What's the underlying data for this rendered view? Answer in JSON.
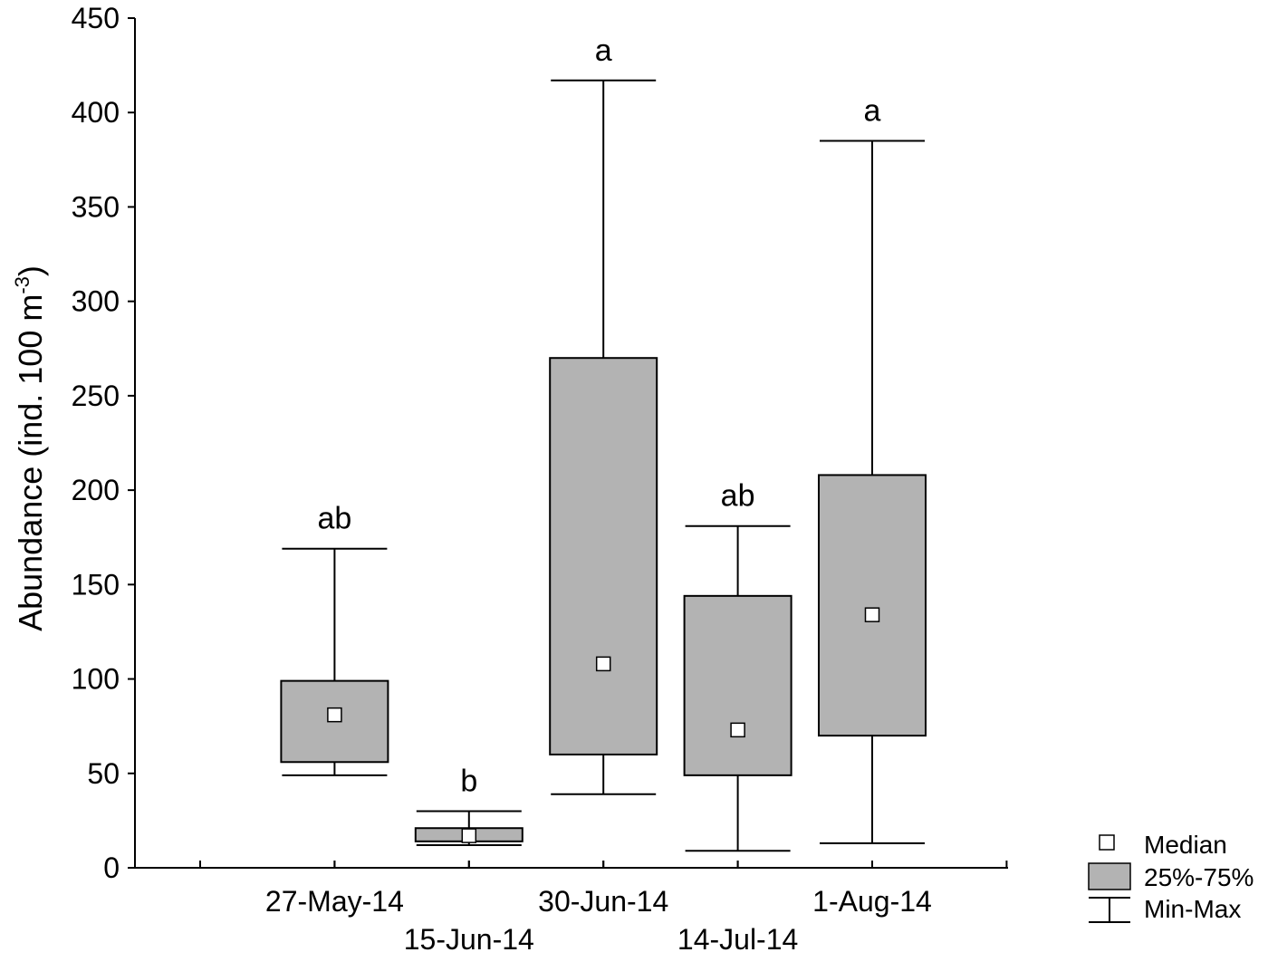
{
  "chart_data": {
    "type": "box",
    "title": "",
    "ylabel": {
      "main": "Abundance (ind. 100 m",
      "sup": "-3",
      "close": ")"
    },
    "xlabel": "",
    "ylim": [
      0,
      450
    ],
    "yticks": [
      0,
      50,
      100,
      150,
      200,
      250,
      300,
      350,
      400,
      450
    ],
    "categories": [
      "27-May-14",
      "15-Jun-14",
      "30-Jun-14",
      "14-Jul-14",
      "1-Aug-14"
    ],
    "boxes": [
      {
        "category": "27-May-14",
        "min": 49,
        "q1": 56,
        "median": 81,
        "q3": 99,
        "max": 169,
        "group": "ab"
      },
      {
        "category": "15-Jun-14",
        "min": 12,
        "q1": 14,
        "median": 17,
        "q3": 21,
        "max": 30,
        "group": "b"
      },
      {
        "category": "30-Jun-14",
        "min": 39,
        "q1": 60,
        "median": 108,
        "q3": 270,
        "max": 417,
        "group": "a"
      },
      {
        "category": "14-Jul-14",
        "min": 9,
        "q1": 49,
        "median": 73,
        "q3": 144,
        "max": 181,
        "group": "ab"
      },
      {
        "category": "1-Aug-14",
        "min": 13,
        "q1": 70,
        "median": 134,
        "q3": 208,
        "max": 385,
        "group": "a"
      }
    ],
    "legend": {
      "position": "bottom-right",
      "items": [
        "Median",
        "25%-75%",
        "Min-Max"
      ]
    },
    "grid": false,
    "colors": {
      "box_fill": "#b3b3b3",
      "median_fill": "#ffffff",
      "stroke": "#000000"
    }
  }
}
